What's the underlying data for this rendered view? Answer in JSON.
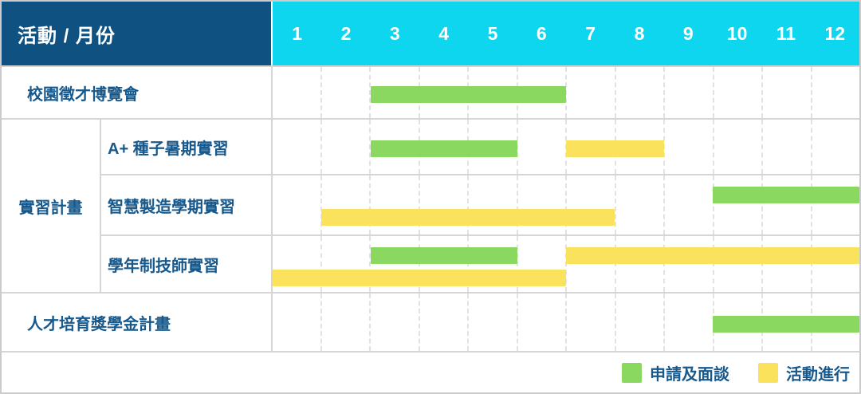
{
  "header": {
    "title": "活動 / 月份",
    "months": [
      "1",
      "2",
      "3",
      "4",
      "5",
      "6",
      "7",
      "8",
      "9",
      "10",
      "11",
      "12"
    ]
  },
  "group": {
    "label": "實習計畫"
  },
  "rows": [
    {
      "id": "campus-job-fair",
      "label": "校園徵才博覽會",
      "lanes": 1,
      "bars": [
        {
          "color": "green",
          "start": 3,
          "end": 6,
          "lane": 0
        }
      ]
    },
    {
      "id": "aplus-seed-summer-internship",
      "label": "A+ 種子暑期實習",
      "lanes": 1,
      "bars": [
        {
          "color": "green",
          "start": 3,
          "end": 5,
          "lane": 0
        },
        {
          "color": "yellow",
          "start": 7,
          "end": 8,
          "lane": 0
        }
      ]
    },
    {
      "id": "smart-manufacturing-semester-internship",
      "label": "智慧製造學期實習",
      "lanes": 2,
      "bars": [
        {
          "color": "green",
          "start": 10,
          "end": 12,
          "lane": 0
        },
        {
          "color": "yellow",
          "start": 2,
          "end": 7,
          "lane": 1
        }
      ]
    },
    {
      "id": "academic-year-technician-internship",
      "label": "學年制技師實習",
      "lanes": 2,
      "bars": [
        {
          "color": "green",
          "start": 3,
          "end": 5,
          "lane": 0
        },
        {
          "color": "yellow",
          "start": 7,
          "end": 12,
          "lane": 0
        },
        {
          "color": "yellow",
          "start": 1,
          "end": 6,
          "lane": 1
        }
      ]
    },
    {
      "id": "talent-scholarship-program",
      "label": "人才培育獎學金計畫",
      "lanes": 1,
      "bars": [
        {
          "color": "green",
          "start": 10,
          "end": 12,
          "lane": 0
        }
      ]
    }
  ],
  "legend": [
    {
      "color": "green",
      "label": "申請及面談"
    },
    {
      "color": "yellow",
      "label": "活動進行"
    }
  ],
  "colors": {
    "header_blue": "#0F5180",
    "month_cyan": "#0ED6EE",
    "bar_green": "#8AD860",
    "bar_yellow": "#FBE25C",
    "label_text": "#17598C",
    "grid_line": "#D5D5D5",
    "dash_line": "#E2E2E2"
  },
  "chart_data": {
    "type": "gantt",
    "title": "活動 / 月份",
    "x_unit": "month",
    "x_range": [
      1,
      12
    ],
    "x_ticks": [
      "1",
      "2",
      "3",
      "4",
      "5",
      "6",
      "7",
      "8",
      "9",
      "10",
      "11",
      "12"
    ],
    "legend_position": "bottom-right",
    "legend": [
      {
        "label": "申請及面談",
        "color": "#8AD860"
      },
      {
        "label": "活動進行",
        "color": "#FBE25C"
      }
    ],
    "tasks": [
      {
        "group": null,
        "name": "校園徵才博覽會",
        "phases": [
          {
            "type": "申請及面談",
            "start_month": 3,
            "end_month": 6
          }
        ]
      },
      {
        "group": "實習計畫",
        "name": "A+ 種子暑期實習",
        "phases": [
          {
            "type": "申請及面談",
            "start_month": 3,
            "end_month": 5
          },
          {
            "type": "活動進行",
            "start_month": 7,
            "end_month": 8
          }
        ]
      },
      {
        "group": "實習計畫",
        "name": "智慧製造學期實習",
        "phases": [
          {
            "type": "申請及面談",
            "start_month": 10,
            "end_month": 12
          },
          {
            "type": "活動進行",
            "start_month": 2,
            "end_month": 7
          }
        ]
      },
      {
        "group": "實習計畫",
        "name": "學年制技師實習",
        "phases": [
          {
            "type": "申請及面談",
            "start_month": 3,
            "end_month": 5
          },
          {
            "type": "活動進行",
            "start_month": 7,
            "end_month": 12
          },
          {
            "type": "活動進行",
            "start_month": 1,
            "end_month": 6
          }
        ]
      },
      {
        "group": null,
        "name": "人才培育獎學金計畫",
        "phases": [
          {
            "type": "申請及面談",
            "start_month": 10,
            "end_month": 12
          }
        ]
      }
    ]
  }
}
